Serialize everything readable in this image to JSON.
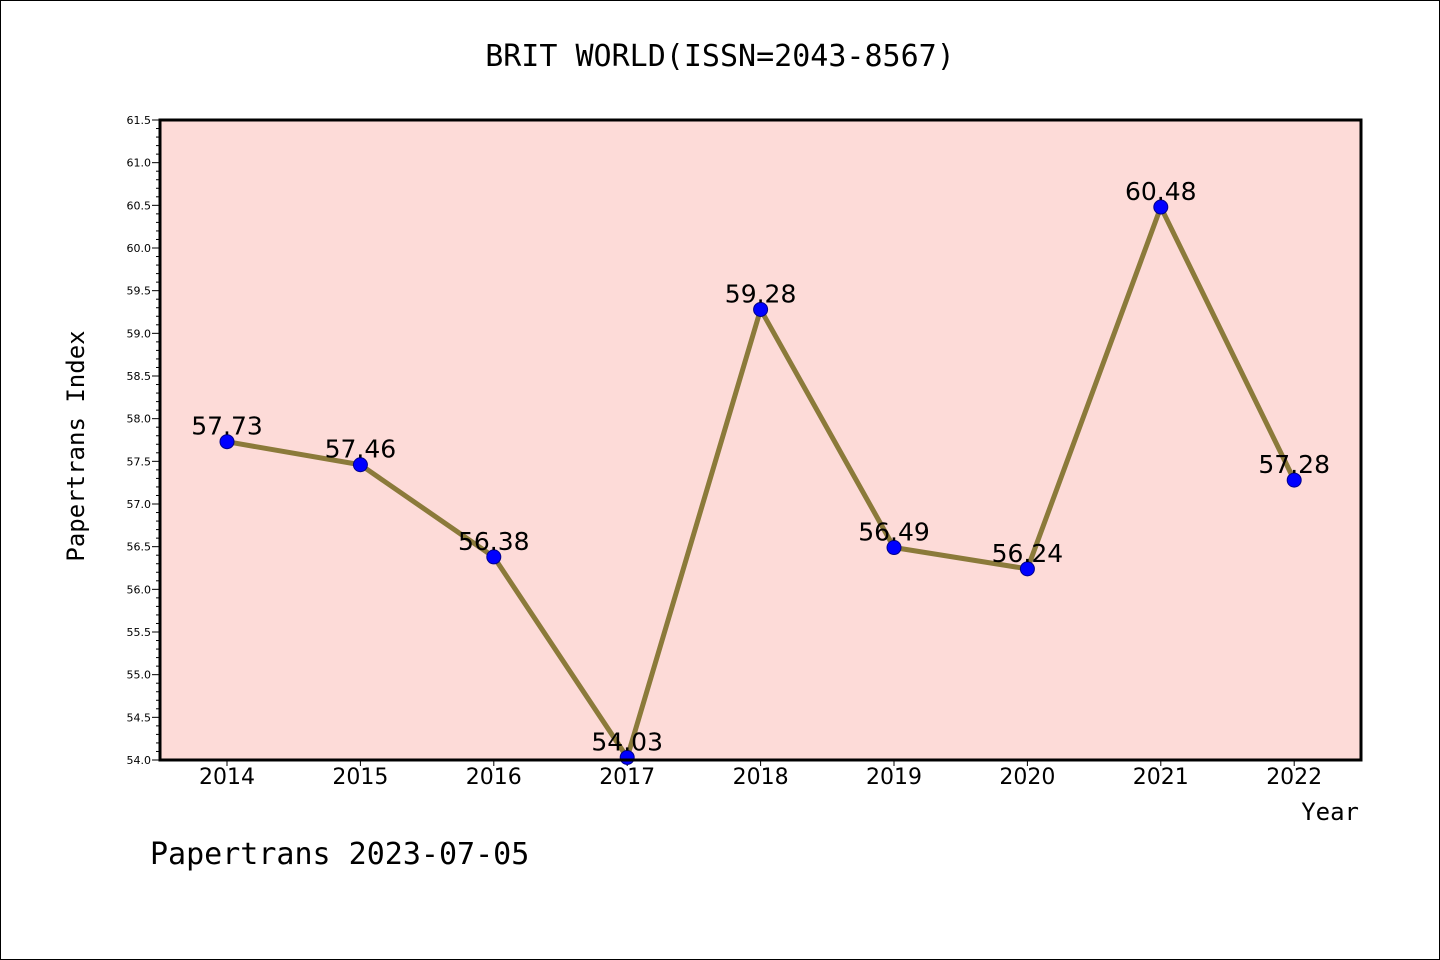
{
  "chart_data": {
    "type": "line",
    "title": "BRIT WORLD(ISSN=2043-8567)",
    "xlabel": "Year",
    "ylabel": "Papertrans Index",
    "categories": [
      "2014",
      "2015",
      "2016",
      "2017",
      "2018",
      "2019",
      "2020",
      "2021",
      "2022"
    ],
    "series": [
      {
        "values": [
          57.73,
          57.46,
          56.38,
          54.03,
          59.28,
          56.49,
          56.24,
          60.48,
          57.28
        ]
      }
    ],
    "data_labels": [
      "57.73",
      "57.46",
      "56.38",
      "54.03",
      "59.28",
      "56.49",
      "56.24",
      "60.48",
      "57.28"
    ],
    "ylim": [
      54.0,
      61.5
    ],
    "yticks": [
      "54.0",
      "54.5",
      "55.0",
      "55.5",
      "56.0",
      "56.5",
      "57.0",
      "57.5",
      "58.0",
      "58.5",
      "59.0",
      "59.5",
      "60.0",
      "60.5",
      "61.0",
      "61.5"
    ],
    "grid": false,
    "colors": {
      "plot_background": "#fddbd8",
      "line": "#8b7a3a",
      "marker": "#0000ff"
    }
  },
  "footer": {
    "text": "Papertrans 2023-07-05"
  }
}
